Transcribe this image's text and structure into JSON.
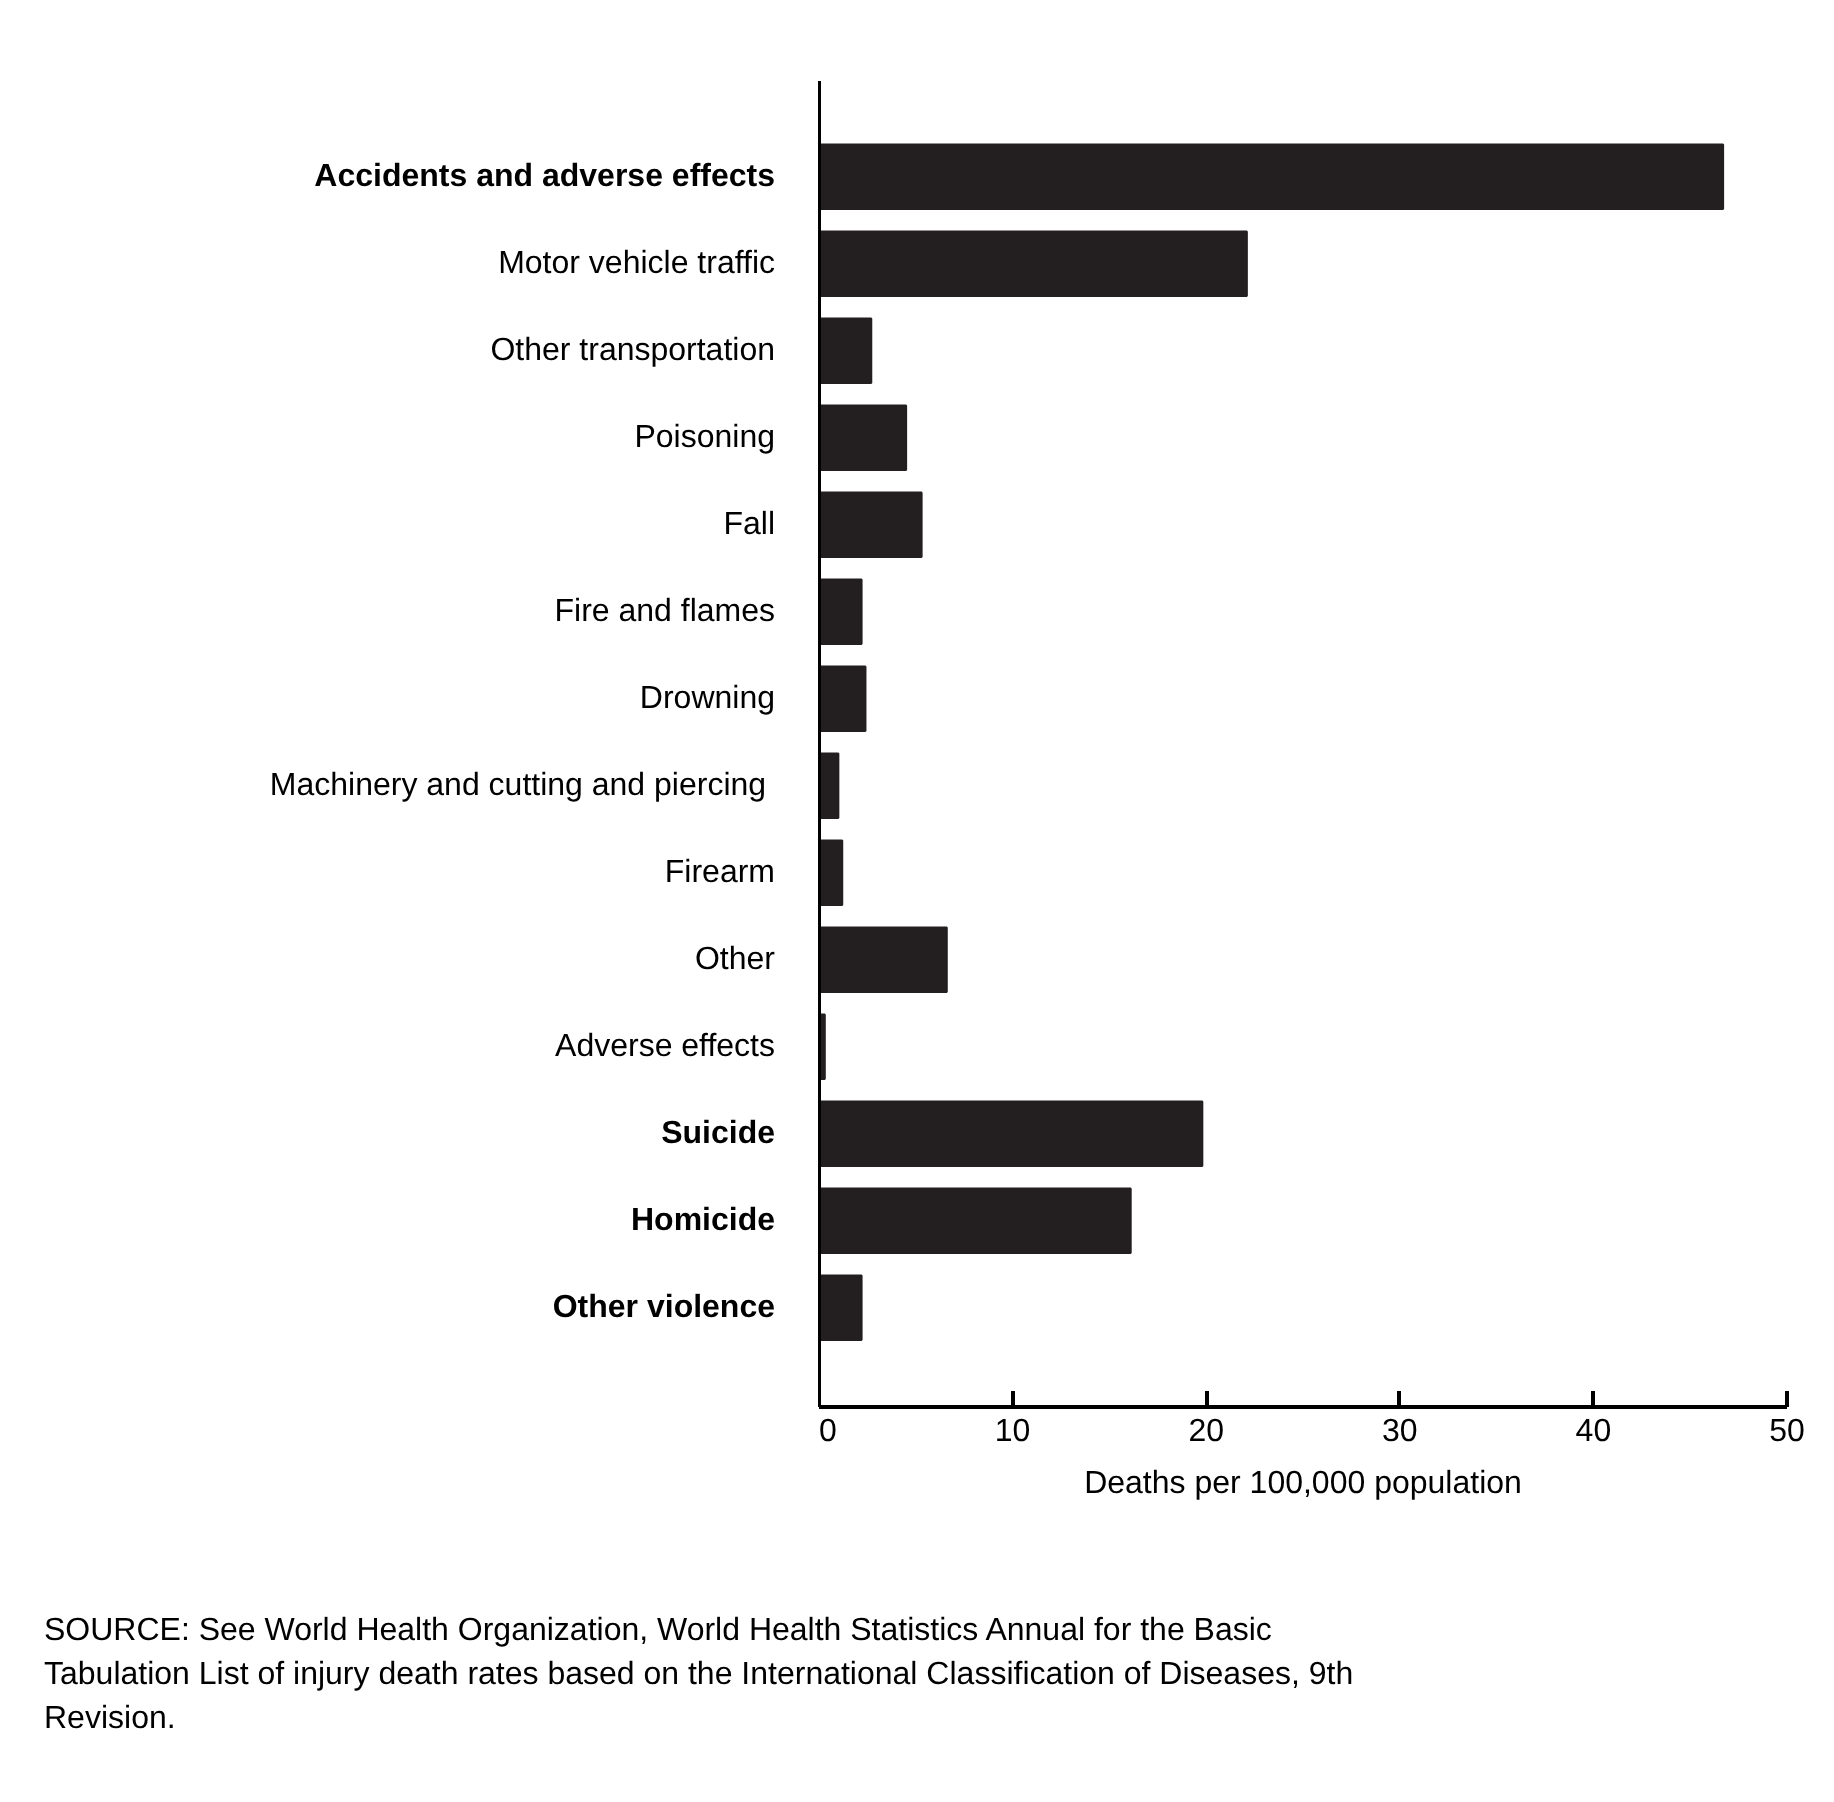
{
  "chart_data": {
    "type": "bar",
    "orientation": "horizontal",
    "categories": [
      "Accidents and adverse effects",
      "Motor vehicle traffic",
      "Other transportation",
      "Poisoning",
      "Fall",
      "Fire and flames",
      "Drowning",
      "Machinery and cutting and  piercing",
      "Firearm",
      "Other",
      "Adverse effects",
      "Suicide",
      "Homicide",
      "Other violence"
    ],
    "values": [
      46.7,
      22.1,
      2.7,
      4.5,
      5.3,
      2.2,
      2.4,
      1.0,
      1.2,
      6.6,
      0.3,
      19.8,
      16.1,
      2.2
    ],
    "color": "#231f20",
    "xlim": [
      0,
      50
    ],
    "xticks": [
      0,
      10,
      20,
      30,
      40,
      50
    ],
    "xlabel": "Deaths per 100,000 population",
    "grid": false,
    "legend": false,
    "annotations": [
      "SOURCE: See World Health Organization, World Health Statistics Annual for the Basic Tabulation List of injury death rates based on the International Classification of Diseases, 9th Revision."
    ]
  }
}
